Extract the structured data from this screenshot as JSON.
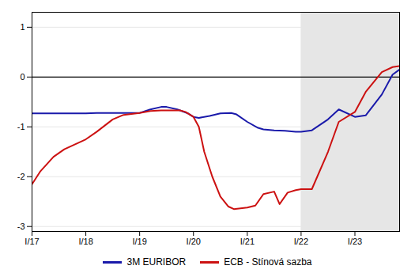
{
  "chart_data": {
    "type": "line",
    "series": [
      {
        "name": "3M EURIBOR",
        "color": "#1a1aaa",
        "x": [
          2017.0,
          2017.1,
          2017.3,
          2017.5,
          2017.7,
          2017.9,
          2018.0,
          2018.2,
          2018.4,
          2018.6,
          2018.8,
          2019.0,
          2019.2,
          2019.4,
          2019.5,
          2019.7,
          2019.9,
          2020.0,
          2020.1,
          2020.3,
          2020.5,
          2020.7,
          2020.8,
          2021.0,
          2021.2,
          2021.3,
          2021.5,
          2021.7,
          2021.9,
          2022.0,
          2022.2,
          2022.5,
          2022.7,
          2023.0,
          2023.2,
          2023.5,
          2023.7,
          2023.83
        ],
        "values": [
          -0.73,
          -0.73,
          -0.73,
          -0.73,
          -0.73,
          -0.73,
          -0.73,
          -0.72,
          -0.72,
          -0.72,
          -0.72,
          -0.72,
          -0.65,
          -0.6,
          -0.6,
          -0.65,
          -0.73,
          -0.8,
          -0.82,
          -0.78,
          -0.73,
          -0.72,
          -0.75,
          -0.9,
          -1.02,
          -1.05,
          -1.07,
          -1.08,
          -1.1,
          -1.1,
          -1.07,
          -0.85,
          -0.65,
          -0.8,
          -0.77,
          -0.35,
          0.05,
          0.15
        ]
      },
      {
        "name": "ECB - Stínová sazba",
        "color": "#cc1111",
        "x": [
          2017.0,
          2017.15,
          2017.4,
          2017.6,
          2017.8,
          2018.0,
          2018.2,
          2018.5,
          2018.7,
          2019.0,
          2019.2,
          2019.4,
          2019.6,
          2019.75,
          2019.85,
          2020.0,
          2020.1,
          2020.2,
          2020.35,
          2020.5,
          2020.65,
          2020.75,
          2021.0,
          2021.15,
          2021.3,
          2021.5,
          2021.6,
          2021.75,
          2021.9,
          2022.0,
          2022.2,
          2022.5,
          2022.7,
          2023.0,
          2023.2,
          2023.5,
          2023.7,
          2023.83
        ],
        "values": [
          -2.15,
          -1.9,
          -1.6,
          -1.45,
          -1.35,
          -1.25,
          -1.1,
          -0.85,
          -0.76,
          -0.72,
          -0.68,
          -0.67,
          -0.67,
          -0.67,
          -0.7,
          -0.8,
          -1.0,
          -1.5,
          -2.0,
          -2.4,
          -2.6,
          -2.65,
          -2.62,
          -2.58,
          -2.35,
          -2.3,
          -2.55,
          -2.32,
          -2.27,
          -2.25,
          -2.25,
          -1.5,
          -0.9,
          -0.7,
          -0.3,
          0.1,
          0.2,
          0.22
        ]
      }
    ],
    "xlim": [
      2017.0,
      2023.83
    ],
    "xticks": [
      {
        "value": 2017.0,
        "label": "I/17"
      },
      {
        "value": 2018.0,
        "label": "I/18"
      },
      {
        "value": 2019.0,
        "label": "I/19"
      },
      {
        "value": 2020.0,
        "label": "I/20"
      },
      {
        "value": 2021.0,
        "label": "I/21"
      },
      {
        "value": 2022.0,
        "label": "I/22"
      },
      {
        "value": 2023.0,
        "label": "I/23"
      }
    ],
    "ylim": [
      -3.1,
      1.3
    ],
    "yticks": [
      -3,
      -2,
      -1,
      0,
      1
    ],
    "grid": true,
    "legend": "bottom",
    "shaded_span": {
      "x": [
        2022.0,
        2023.83
      ],
      "color": "#e6e6e6"
    },
    "baseline": 0
  }
}
